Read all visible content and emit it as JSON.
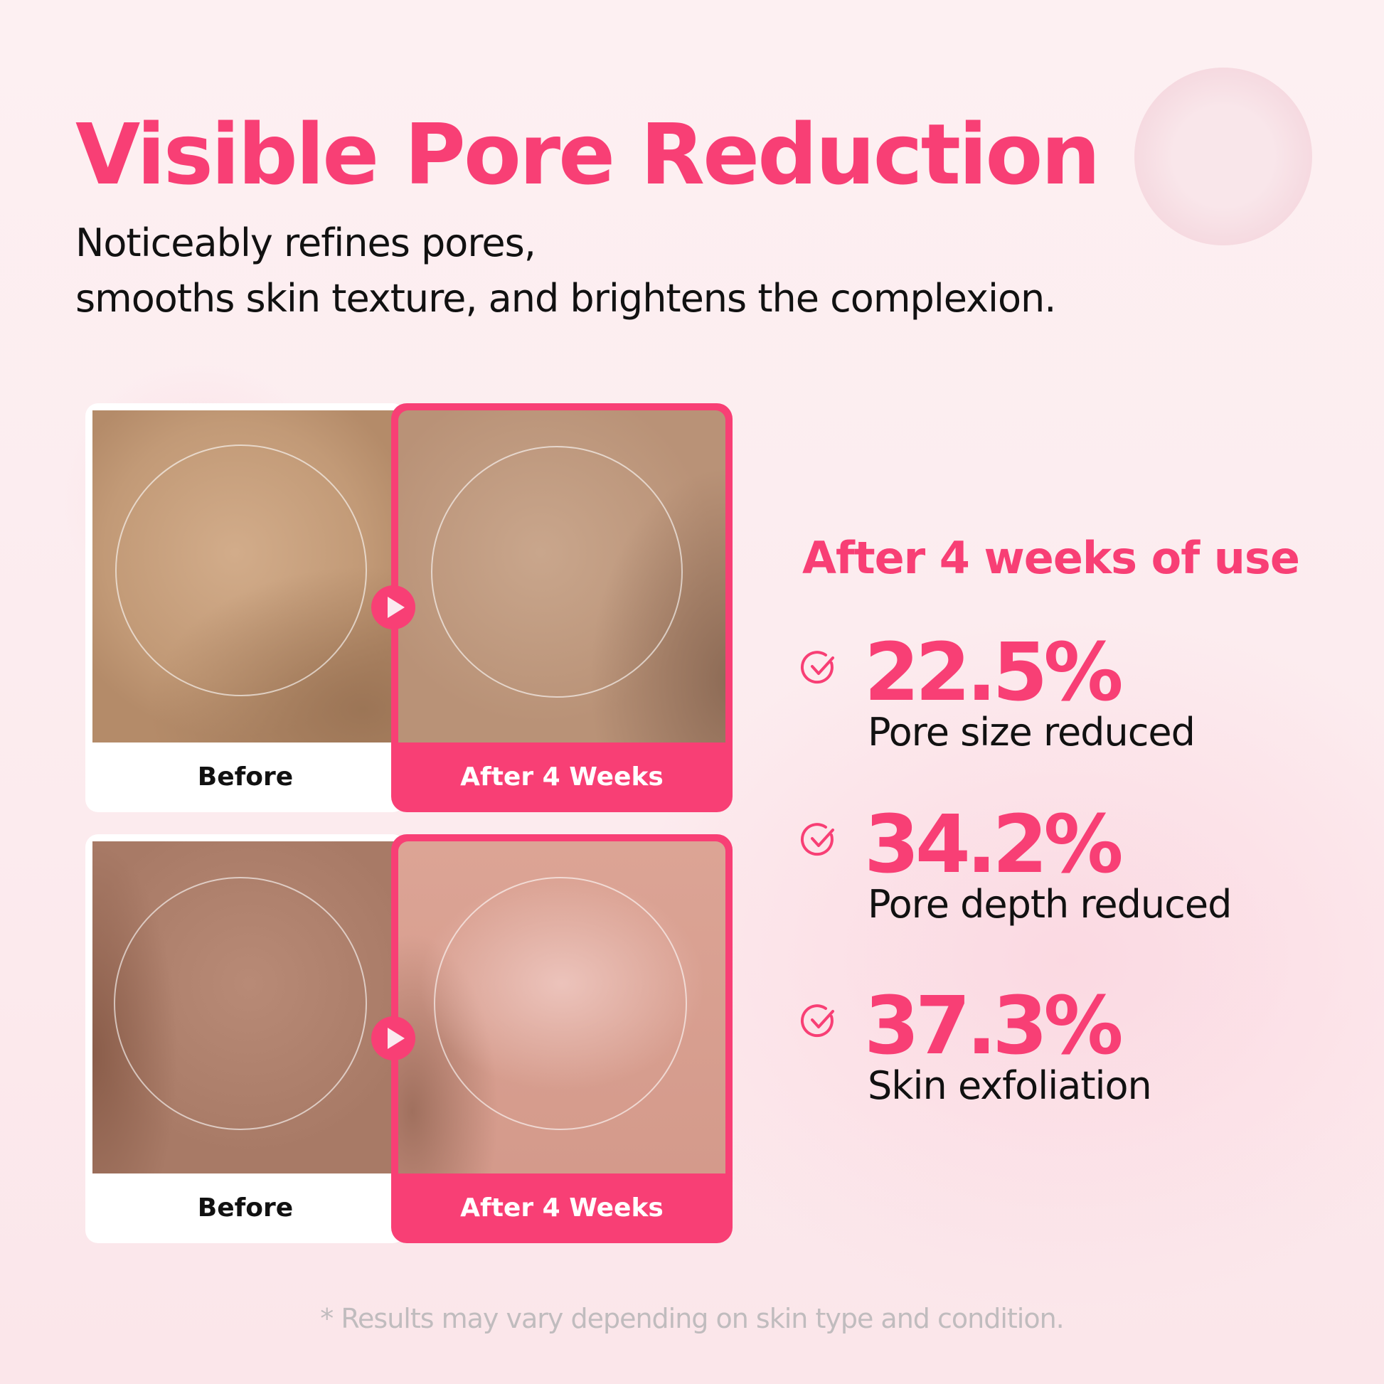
{
  "header": {
    "title": "Visible Pore Reduction",
    "subtitle_lines": [
      "Noticeably refines pores,",
      "smooths skin texture, and brightens the complexion."
    ]
  },
  "comparisons": [
    {
      "before_label": "Before",
      "after_label": "After 4 Weeks"
    },
    {
      "before_label": "Before",
      "after_label": "After 4 Weeks"
    }
  ],
  "results": {
    "heading": "After 4 weeks of use",
    "stats": [
      {
        "value": "22.5%",
        "label": "Pore size reduced",
        "icon": "check-circle-icon"
      },
      {
        "value": "34.2%",
        "label": "Pore depth reduced",
        "icon": "check-circle-icon"
      },
      {
        "value": "37.3%",
        "label": "Skin exfoliation",
        "icon": "check-circle-icon"
      }
    ]
  },
  "footer": {
    "disclaimer": "* Results may vary depending on skin type and condition."
  },
  "colors": {
    "accent": "#f83f75",
    "text": "#111111",
    "footnote": "#c0bcbe"
  }
}
